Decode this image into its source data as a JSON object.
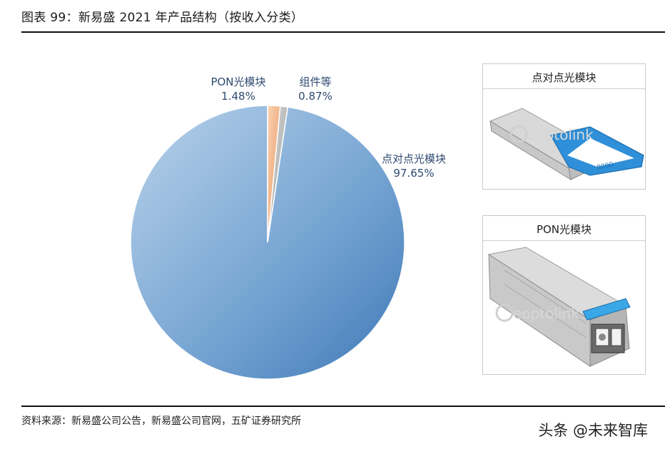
{
  "header": {
    "title": "图表 99：新易盛 2021 年产品结构（按收入分类）"
  },
  "chart_data": {
    "type": "pie",
    "categories": [
      "点对点光模块",
      "PON光模块",
      "组件等"
    ],
    "values": [
      97.65,
      1.48,
      0.87
    ],
    "labels": [
      "97.65%",
      "1.48%",
      "0.87%"
    ],
    "colors": [
      "#5b8fc5",
      "#f4b183",
      "#bfbfbf"
    ]
  },
  "panels": [
    {
      "title": "点对点光模块",
      "brand": "eoptolink",
      "tag": "800G"
    },
    {
      "title": "PON光模块",
      "brand": "eoptolink"
    }
  ],
  "footer": {
    "source": "资料来源：新易盛公司公告，新易盛公司官网，五矿证券研究所",
    "watermark": "头条 @未来智库"
  }
}
